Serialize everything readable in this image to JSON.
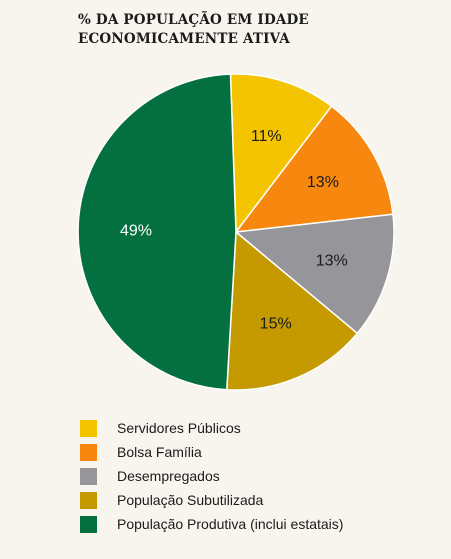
{
  "chart_data": {
    "type": "pie",
    "title_lines": [
      "% DA POPULAÇÃO EM IDADE",
      "ECONOMICAMENTE ATIVA"
    ],
    "categories": [
      "Servidores Públicos",
      "Bolsa Família",
      "Desempregados",
      "População Subutilizada",
      "População Produtiva (inclui estatais)"
    ],
    "values": [
      11,
      13,
      13,
      15,
      49
    ],
    "labels": [
      "11%",
      "13%",
      "13%",
      "15%",
      "49%"
    ],
    "colors": [
      "#f5c400",
      "#f7870f",
      "#96969a",
      "#c49a00",
      "#047040"
    ],
    "label_colors": [
      "#1b1b1b",
      "#1b1b1b",
      "#1b1b1b",
      "#1b1b1b",
      "#ffffff"
    ],
    "start_angle_deg": 268,
    "direction": "clockwise",
    "legend_position": "bottom"
  }
}
